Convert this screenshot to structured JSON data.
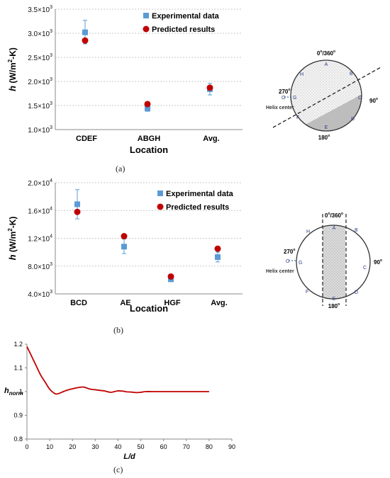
{
  "chart_data": [
    {
      "type": "scatter",
      "panel": "(a)",
      "categories": [
        "CDEF",
        "ABGH",
        "Avg."
      ],
      "xlabel": "Location",
      "ylabel_main": "h",
      "ylabel_unit": "(W/m",
      "ylabel_sup": "2",
      "ylabel_tail": "-K)",
      "ylim": [
        1000,
        3500
      ],
      "yticks": [
        {
          "value": 1000,
          "m": "1.0",
          "e": "3"
        },
        {
          "value": 1500,
          "m": "1.5",
          "e": "3"
        },
        {
          "value": 2000,
          "m": "2.0",
          "e": "3"
        },
        {
          "value": 2500,
          "m": "2.5",
          "e": "3"
        },
        {
          "value": 3000,
          "m": "3.0",
          "e": "3"
        },
        {
          "value": 3500,
          "m": "3.5",
          "e": "3"
        }
      ],
      "grid": true,
      "legend": "top-right",
      "series": [
        {
          "name": "Experimental data",
          "marker": "square",
          "color": "#5b9bd5",
          "values": [
            3020,
            1440,
            1840
          ],
          "err_low": [
            2780,
            1380,
            1720
          ],
          "err_high": [
            3270,
            1500,
            1960
          ]
        },
        {
          "name": "Predicted results",
          "marker": "circle",
          "color": "#c00000",
          "values": [
            2850,
            1530,
            1870
          ]
        }
      ]
    },
    {
      "type": "scatter",
      "panel": "(b)",
      "categories": [
        "BCD",
        "AE",
        "HGF",
        "Avg."
      ],
      "xlabel": "Location",
      "ylabel_main": "h",
      "ylabel_unit": "(W/m",
      "ylabel_sup": "2",
      "ylabel_tail": "-K)",
      "ylim": [
        4000,
        20000
      ],
      "yticks": [
        {
          "value": 4000,
          "m": "4.0",
          "e": "3"
        },
        {
          "value": 8000,
          "m": "8.0",
          "e": "3"
        },
        {
          "value": 12000,
          "m": "1.2",
          "e": "4"
        },
        {
          "value": 16000,
          "m": "1.6",
          "e": "4"
        },
        {
          "value": 20000,
          "m": "2.0",
          "e": "4"
        }
      ],
      "grid": true,
      "legend": "top-right",
      "series": [
        {
          "name": "Experimental data",
          "marker": "square",
          "color": "#5b9bd5",
          "values": [
            16900,
            10800,
            6100,
            9300
          ],
          "err_low": [
            14800,
            9800,
            5900,
            8600
          ],
          "err_high": [
            19000,
            11900,
            6300,
            10000
          ]
        },
        {
          "name": "Predicted results",
          "marker": "circle",
          "color": "#c00000",
          "values": [
            15800,
            12300,
            6500,
            10500
          ]
        }
      ]
    },
    {
      "type": "line",
      "panel": "(c)",
      "xlabel": "L/d",
      "ylabel_main": "h",
      "ylabel_sub": "norm",
      "xlim": [
        0,
        90
      ],
      "ylim": [
        0.8,
        1.2
      ],
      "xticks": [
        0,
        10,
        20,
        30,
        40,
        50,
        60,
        70,
        80,
        90
      ],
      "yticks": [
        "0.8",
        "0.9",
        "1",
        "1.1",
        "1.2"
      ],
      "ytick_values": [
        0.8,
        0.9,
        1.0,
        1.1,
        1.2
      ],
      "grid": false,
      "series": [
        {
          "color": "#c00000",
          "x": [
            0,
            2,
            4,
            6,
            8,
            10,
            12,
            13,
            14,
            16,
            18,
            20,
            22,
            24,
            25,
            26,
            28,
            30,
            32,
            34,
            36,
            37,
            38,
            40,
            42,
            44,
            46,
            48,
            50,
            52,
            55,
            60,
            70,
            80
          ],
          "y": [
            1.19,
            1.15,
            1.11,
            1.07,
            1.04,
            1.01,
            0.993,
            0.99,
            0.992,
            1.0,
            1.007,
            1.012,
            1.016,
            1.019,
            1.019,
            1.016,
            1.01,
            1.008,
            1.005,
            1.003,
            0.998,
            0.997,
            0.999,
            1.003,
            1.002,
            0.999,
            0.998,
            0.996,
            0.997,
            1.0,
            1.0,
            1.0,
            1.0,
            1.0
          ]
        }
      ]
    }
  ],
  "captions": {
    "a": "(a)",
    "b": "(b)",
    "c": "(c)"
  },
  "diagram_a": {
    "top": "0",
    "top_sup": "o",
    "slash": "/360",
    "slash_sup": "o",
    "right": "90",
    "right_sup": "o",
    "bottom": "180",
    "bottom_sup": "o",
    "left": "270",
    "left_sup": "o",
    "points": [
      "A",
      "B",
      "C",
      "D",
      "E",
      "F",
      "G",
      "H"
    ],
    "center_point": "O",
    "helix_label": "Helix center"
  },
  "diagram_b": {
    "top": "0",
    "top_sup": "o",
    "slash": "/360",
    "slash_sup": "o",
    "right": "90",
    "right_sup": "o",
    "bottom": "180",
    "bottom_sup": "o",
    "left": "270",
    "left_sup": "o",
    "points": [
      "A",
      "B",
      "C",
      "D",
      "E",
      "F",
      "G",
      "H"
    ],
    "center_point": "O",
    "helix_label": "Helix center"
  }
}
